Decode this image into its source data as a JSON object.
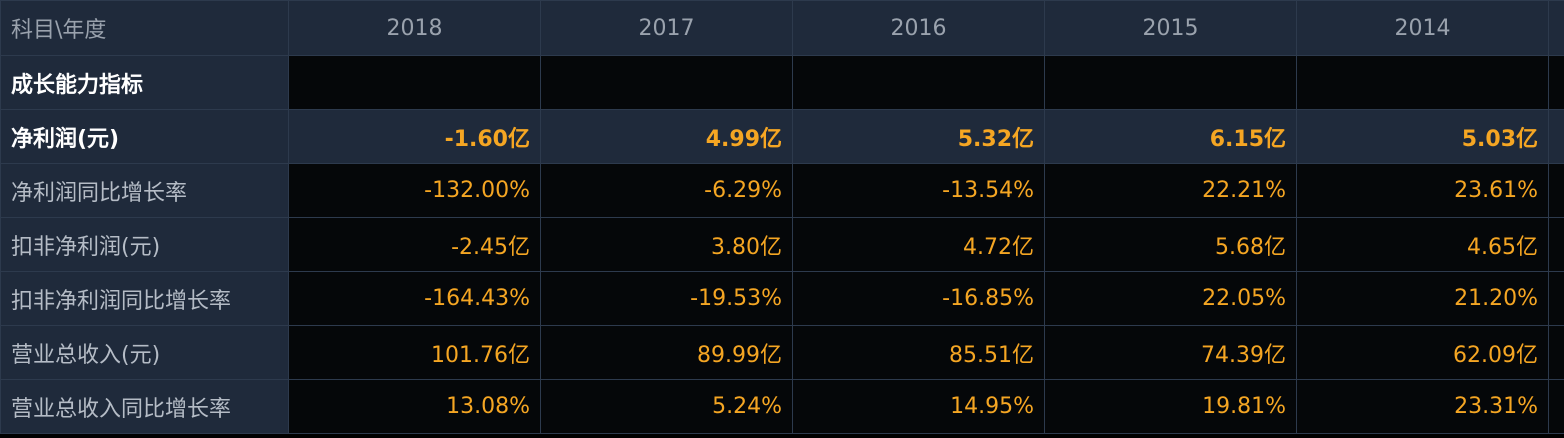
{
  "header": {
    "corner": "科目\\年度",
    "years": [
      "2018",
      "2017",
      "2016",
      "2015",
      "2014"
    ]
  },
  "colors": {
    "header_bg": "#1f2a3b",
    "row_bg": "#050709",
    "value_text": "#f5a623",
    "label_text": "#b5bcc6",
    "border": "#2d3a4d"
  },
  "rows": [
    {
      "label": "成长能力指标",
      "values": [
        "",
        "",
        "",
        "",
        ""
      ]
    },
    {
      "label": "净利润(元)",
      "values": [
        "-1.60亿",
        "4.99亿",
        "5.32亿",
        "6.15亿",
        "5.03亿"
      ]
    },
    {
      "label": "净利润同比增长率",
      "values": [
        "-132.00%",
        "-6.29%",
        "-13.54%",
        "22.21%",
        "23.61%"
      ]
    },
    {
      "label": "扣非净利润(元)",
      "values": [
        "-2.45亿",
        "3.80亿",
        "4.72亿",
        "5.68亿",
        "4.65亿"
      ]
    },
    {
      "label": "扣非净利润同比增长率",
      "values": [
        "-164.43%",
        "-19.53%",
        "-16.85%",
        "22.05%",
        "21.20%"
      ]
    },
    {
      "label": "营业总收入(元)",
      "values": [
        "101.76亿",
        "89.99亿",
        "85.51亿",
        "74.39亿",
        "62.09亿"
      ]
    },
    {
      "label": "营业总收入同比增长率",
      "values": [
        "13.08%",
        "5.24%",
        "14.95%",
        "19.81%",
        "23.31%"
      ]
    }
  ]
}
